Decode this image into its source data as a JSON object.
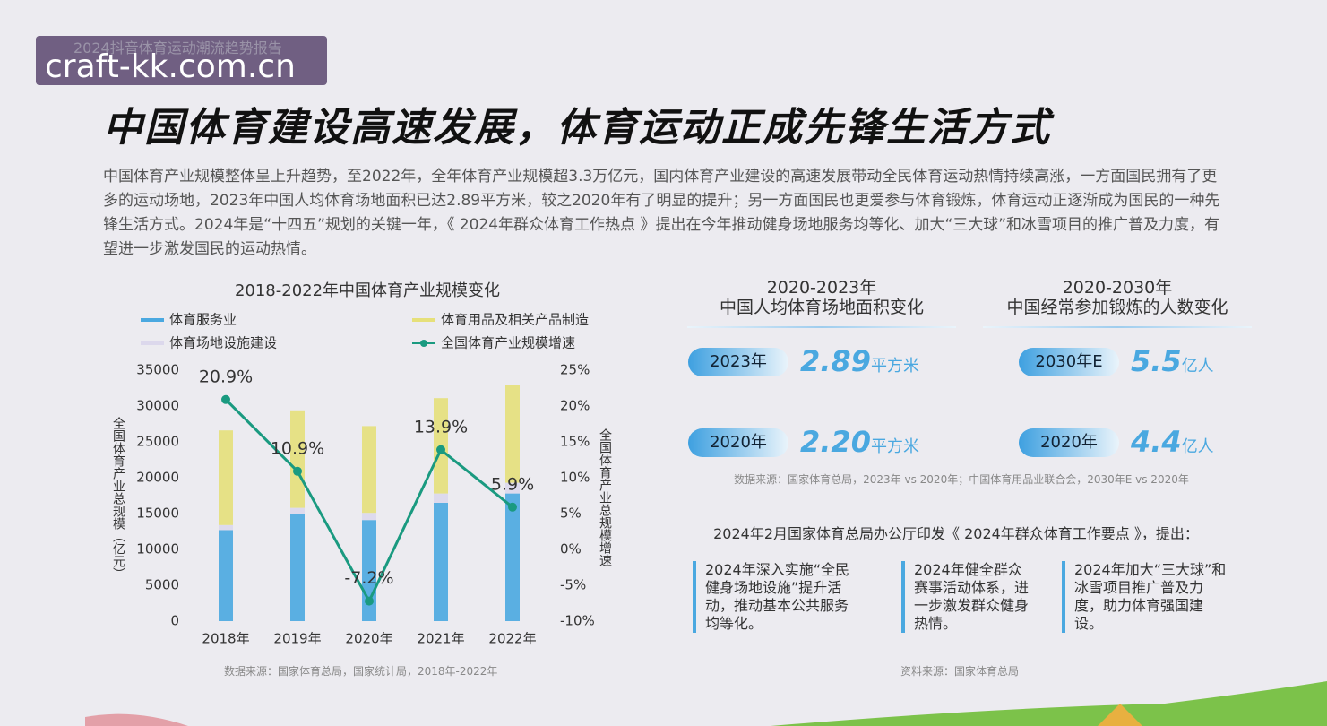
{
  "watermark": {
    "report": "2024抖音体育运动潮流趋势报告",
    "site": "craft-kk.com.cn"
  },
  "header": {
    "title": "中国体育建设高速发展，体育运动正成先锋生活方式",
    "paragraph": "中国体育产业规模整体呈上升趋势，至2022年，全年体育产业规模超3.3万亿元，国内体育产业建设的高速发展带动全民体育运动热情持续高涨，一方面国民拥有了更多的运动场地，2023年中国人均体育场地面积已达2.89平方米，较之2020年有了明显的提升；另一方面国民也更爱参与体育锻炼，体育运动正逐渐成为国民的一种先锋生活方式。2024年是“十四五”规划的关键一年，《 2024年群众体育工作热点 》提出在今年推动健身场地服务均等化、加大“三大球”和冰雪项目的推广普及力度，有望进一步激发国民的运动热情。"
  },
  "chart_data": {
    "type": "bar",
    "title": "2018-2022年中国体育产业规模变化",
    "categories": [
      "2018年",
      "2019年",
      "2020年",
      "2021年",
      "2022年"
    ],
    "series": [
      {
        "name": "体育服务业",
        "color": "#4aa8e0",
        "values": [
          12700,
          14900,
          14100,
          16500,
          17800
        ]
      },
      {
        "name": "体育场地设施建设",
        "color": "#dcd8ec",
        "values": [
          700,
          900,
          1000,
          1300,
          1500
        ]
      },
      {
        "name": "体育用品及相关产品制造",
        "color": "#e6e07a",
        "values": [
          13200,
          13600,
          12100,
          13300,
          13700
        ]
      },
      {
        "name": "全国体育产业规模增速",
        "color": "#1a9a80",
        "type": "line",
        "axis": "y2",
        "values": [
          20.9,
          10.9,
          -7.2,
          13.9,
          5.9
        ],
        "value_labels": [
          "20.9%",
          "10.9%",
          "-7.2%",
          "13.9%",
          "5.9%"
        ]
      }
    ],
    "y_label": "全国体育产业总规模（亿元）",
    "y2_label": "全国体育产业总规模增速",
    "ylim": [
      0,
      35000
    ],
    "yticks": [
      0,
      5000,
      10000,
      15000,
      20000,
      25000,
      30000,
      35000
    ],
    "y2lim": [
      -10,
      25
    ],
    "y2ticks": [
      {
        "value": -10,
        "label": "-10%"
      },
      {
        "value": -5,
        "label": "-5%"
      },
      {
        "value": 0,
        "label": "0%"
      },
      {
        "value": 5,
        "label": "5%"
      },
      {
        "value": 10,
        "label": "10%"
      },
      {
        "value": 15,
        "label": "15%"
      },
      {
        "value": 20,
        "label": "20%"
      },
      {
        "value": 25,
        "label": "25%"
      }
    ],
    "grid": false,
    "stacked": true,
    "source": "数据来源：国家体育总局，国家统计局，2018年-2022年"
  },
  "stats": [
    {
      "title": "2020-2023年",
      "subtitle": "中国人均体育场地面积变化",
      "items": [
        {
          "year": "2023年",
          "value": "2.89",
          "unit": "平方米"
        },
        {
          "year": "2020年",
          "value": "2.20",
          "unit": "平方米"
        }
      ]
    },
    {
      "title": "2020-2030年",
      "subtitle": "中国经常参加锻炼的人数变化",
      "items": [
        {
          "year": "2030年E",
          "value": "5.5",
          "unit": "亿人"
        },
        {
          "year": "2020年",
          "value": "4.4",
          "unit": "亿人"
        }
      ]
    }
  ],
  "stats_source": "数据来源：国家体育总局，2023年 vs 2020年；中国体育用品业联合会，2030年E vs 2020年",
  "policy": {
    "heading": "2024年2月国家体育总局办公厅印发《 2024年群众体育工作要点 》，提出：",
    "items": [
      "2024年深入实施“全民健身场地设施”提升活动，推动基本公共服务均等化。",
      "2024年健全群众赛事活动体系，进一步激发群众健身热情。",
      "2024年加大“三大球”和冰雪项目推广普及力度，助力体育强国建设。"
    ],
    "source": "资料来源：国家体育总局"
  }
}
